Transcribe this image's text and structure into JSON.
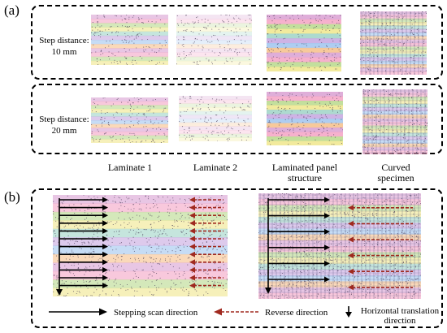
{
  "panel_a": {
    "label": "(a)",
    "rows": [
      {
        "step_text": "Step distance:",
        "step_value": "10 mm"
      },
      {
        "step_text": "Step distance:",
        "step_value": "20 mm"
      }
    ],
    "columns": [
      {
        "line1": "Laminate 1",
        "line2": ""
      },
      {
        "line1": "Laminate 2",
        "line2": ""
      },
      {
        "line1": "Laminated panel",
        "line2": "structure"
      },
      {
        "line1": "Curved",
        "line2": "specimen"
      }
    ]
  },
  "panel_b": {
    "label": "(b)",
    "legend": {
      "stepping": "Stepping scan direction",
      "reverse": "Reverse direction",
      "horizontal_line1": "Horizontal translation",
      "horizontal_line2": "direction"
    }
  },
  "colors": {
    "stepping_arrow": "#000000",
    "reverse_arrow": "#a0291f",
    "band_palette": [
      "#d9a0d2",
      "#f4a3c4",
      "#b8d98c",
      "#f0e68c",
      "#9fd3c7",
      "#c6a6e0",
      "#a0c4ee",
      "#f6c08a"
    ]
  }
}
